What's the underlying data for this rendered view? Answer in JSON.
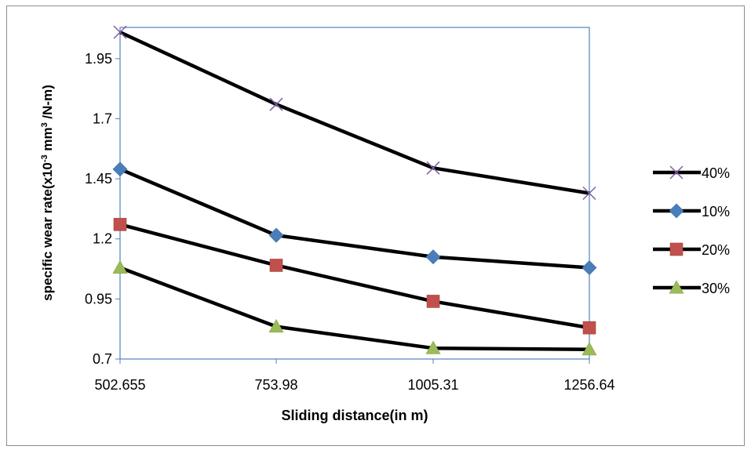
{
  "chart_data": {
    "type": "line",
    "categories": [
      "502.655",
      "753.98",
      "1005.31",
      "1256.64"
    ],
    "xlabel": "Sliding distance(in m)",
    "ylabel": {
      "pre": "specific wear rate(x10",
      "sup1": "-3",
      "mid": " mm",
      "sup2": "3",
      "post": " /N-m)"
    },
    "ylim": [
      0.7,
      2.08
    ],
    "yticks": [
      "0.7",
      "0.95",
      "1.2",
      "1.45",
      "1.7",
      "1.95"
    ],
    "legend_position": "right",
    "series": [
      {
        "name": "40%",
        "values": [
          2.06,
          1.76,
          1.495,
          1.39
        ],
        "marker": "x",
        "color": "#7e5fa6"
      },
      {
        "name": "10%",
        "values": [
          1.49,
          1.215,
          1.125,
          1.08
        ],
        "marker": "diamond",
        "color": "#4a7ebb"
      },
      {
        "name": "20%",
        "values": [
          1.26,
          1.09,
          0.94,
          0.83
        ],
        "marker": "square",
        "color": "#c0504d"
      },
      {
        "name": "30%",
        "values": [
          1.08,
          0.835,
          0.745,
          0.74
        ],
        "marker": "triangle",
        "color": "#9bbb59"
      }
    ]
  }
}
